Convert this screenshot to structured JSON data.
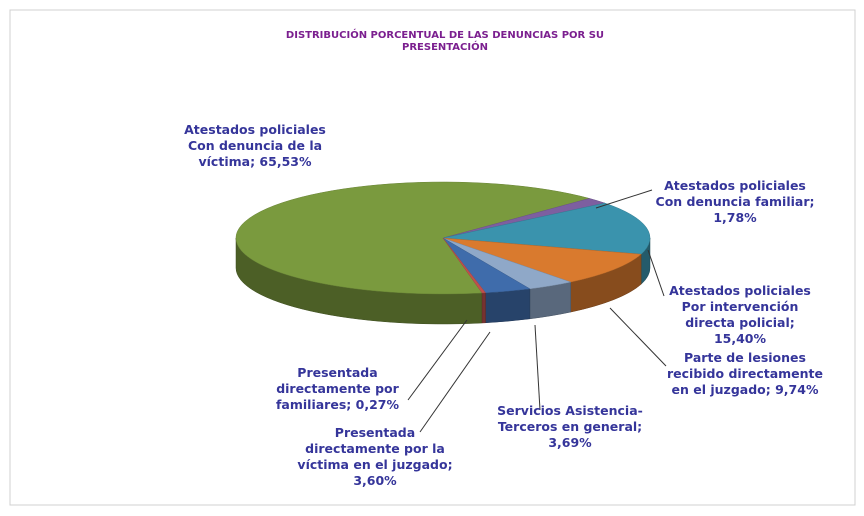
{
  "chart_data": {
    "type": "pie",
    "title": "DISTRIBUCIÓN PORCENTUAL DE LAS DENUNCIAS POR SU PRESENTACIÓN",
    "categories": [
      "Atestados policiales Con denuncia de la víctima",
      "Atestados policiales Con denuncia familiar",
      "Atestados policiales Por intervención directa policial",
      "Parte de lesiones recibido directamente en el juzgado",
      "Servicios Asistencia-Terceros en general",
      "Presentada directamente por la víctima en el juzgado",
      "Presentada directamente por familiares"
    ],
    "values": [
      65.53,
      1.78,
      15.4,
      9.74,
      3.69,
      3.6,
      0.27
    ],
    "value_labels": [
      "65,53%",
      "1,78%",
      "15,40%",
      "9,74%",
      "3,69%",
      "3,60%",
      "0,27%"
    ],
    "label_separator": "; ",
    "colors": [
      "#7a9a3e",
      "#7d5fa0",
      "#3a93ad",
      "#d97a2e",
      "#8fa8c8",
      "#3f6cab",
      "#c0504d"
    ]
  }
}
